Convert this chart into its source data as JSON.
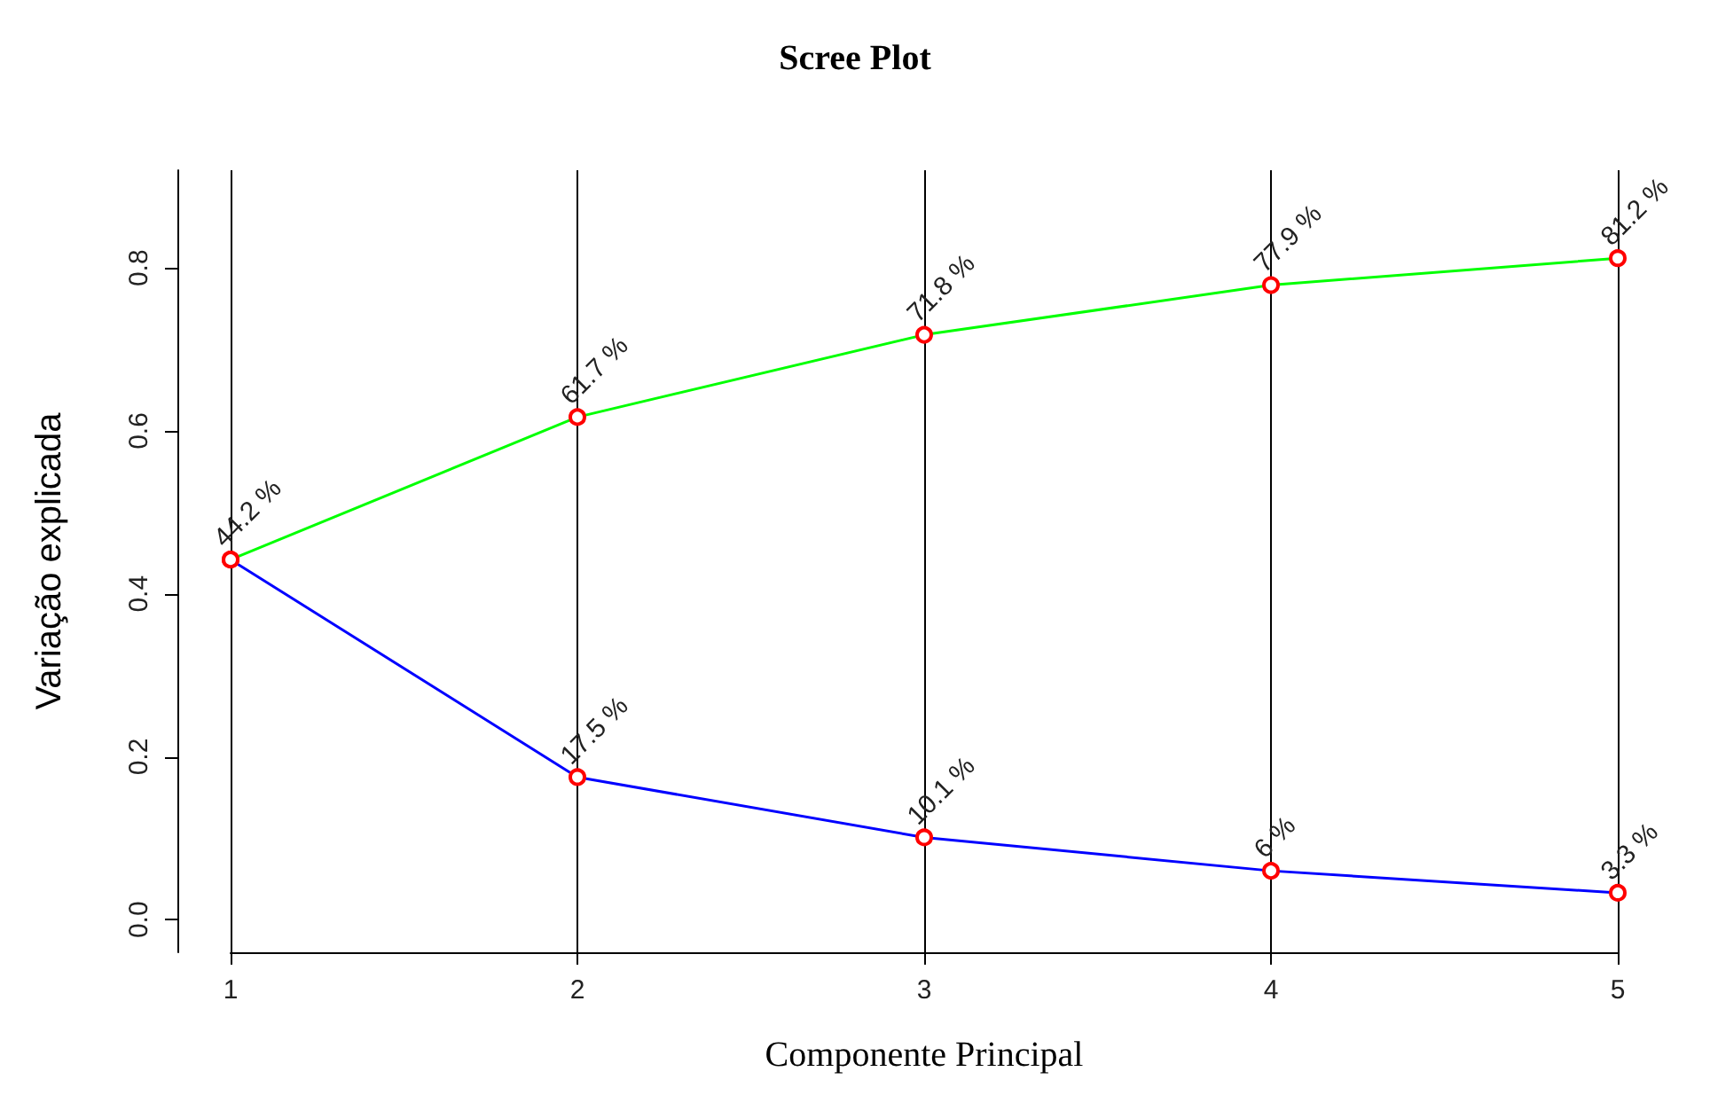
{
  "chart_data": {
    "type": "line",
    "title": "Scree Plot",
    "xlabel": "Componente Principal",
    "ylabel": "Variação explicada",
    "x": [
      1,
      2,
      3,
      4,
      5
    ],
    "series": [
      {
        "color": "#0000ff",
        "values": [
          0.442,
          0.175,
          0.101,
          0.06,
          0.033
        ],
        "value_labels": [
          null,
          "17.5 %",
          "10.1 %",
          "6 %",
          "3.3 %"
        ]
      },
      {
        "color": "#00ff00",
        "values": [
          0.442,
          0.617,
          0.718,
          0.779,
          0.812
        ],
        "value_labels": [
          "44.2 %",
          "61.7 %",
          "71.8 %",
          "77.9 %",
          "81.2 %"
        ]
      }
    ],
    "xlim": [
      1,
      5
    ],
    "xticks": [
      1,
      2,
      3,
      4,
      5
    ],
    "ylim": [
      -0.04,
      0.92
    ],
    "yticks": [
      {
        "value": 0,
        "label": "0.0"
      },
      {
        "value": 0.2,
        "label": "0.2"
      },
      {
        "value": 0.4,
        "label": "0.4"
      },
      {
        "value": 0.6,
        "label": "0.6"
      },
      {
        "value": 0.8,
        "label": "0.8"
      }
    ],
    "grid": "x",
    "marker": "circle",
    "line_style": "solid"
  }
}
